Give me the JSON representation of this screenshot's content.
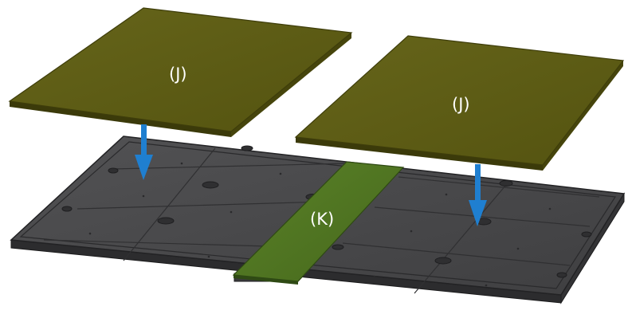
{
  "diagram": {
    "labels": {
      "panel_left": "(J)",
      "panel_right": "(J)",
      "center_strip": "(K)"
    },
    "colors": {
      "background": "#ffffff",
      "panel_fill": "#5b5a10",
      "panel_edge": "#3e3d0a",
      "base_top": "#4b4b4d",
      "base_side": "#2e2e30",
      "strip_fill": "#4f7520",
      "arrow": "#1f7fd0",
      "label_text": "#ffffff"
    }
  }
}
